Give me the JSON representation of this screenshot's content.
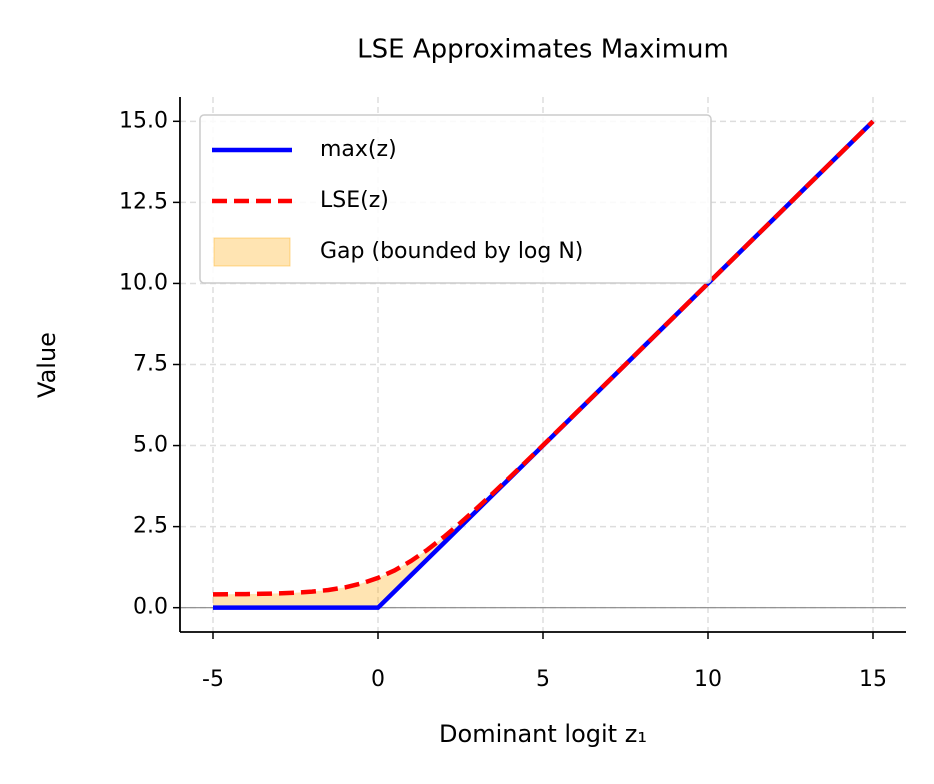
{
  "chart_data": {
    "type": "line",
    "title": "LSE Approximates Maximum",
    "xlabel": "Dominant logit z₁",
    "ylabel": "Value",
    "x": [
      -5,
      -4.5,
      -4,
      -3.5,
      -3,
      -2.5,
      -2,
      -1.5,
      -1,
      -0.5,
      0,
      0.5,
      1,
      1.5,
      2,
      2.5,
      3,
      3.5,
      4,
      4.5,
      5,
      6,
      7,
      8,
      9,
      10,
      11,
      12,
      13,
      14,
      15
    ],
    "series": [
      {
        "name": "max(z)",
        "color": "#0000ff",
        "dash": false,
        "values": [
          0,
          0,
          0,
          0,
          0,
          0,
          0,
          0,
          0,
          0,
          0,
          0.5,
          1,
          1.5,
          2,
          2.5,
          3,
          3.5,
          4,
          4.5,
          5,
          6,
          7,
          8,
          9,
          10,
          11,
          12,
          13,
          14,
          15
        ]
      },
      {
        "name": "LSE(z)",
        "color": "#ff0000",
        "dash": true,
        "values": [
          0.412,
          0.415,
          0.42,
          0.428,
          0.44,
          0.461,
          0.494,
          0.546,
          0.626,
          0.747,
          0.918,
          1.148,
          1.44,
          1.789,
          2.185,
          2.616,
          3.072,
          3.545,
          4.027,
          4.516,
          5.01,
          6.004,
          7.001,
          8.001,
          9.0,
          10.0,
          11.0,
          12.0,
          13.0,
          14.0,
          15.0
        ]
      }
    ],
    "fill": {
      "name": "Gap (bounded by log N)",
      "color": "#ffa500"
    },
    "hlines": [
      0
    ],
    "xlim": [
      -6,
      16
    ],
    "ylim": [
      -0.75,
      15.75
    ],
    "xticks": [
      -5,
      0,
      5,
      10,
      15
    ],
    "yticks": [
      {
        "value": 0,
        "label": "0.0"
      },
      2.5,
      {
        "value": 5,
        "label": "5.0"
      },
      7.5,
      {
        "value": 10,
        "label": "10.0"
      },
      12.5,
      {
        "value": 15,
        "label": "15.0"
      }
    ],
    "grid": true,
    "legend": "upper left"
  }
}
